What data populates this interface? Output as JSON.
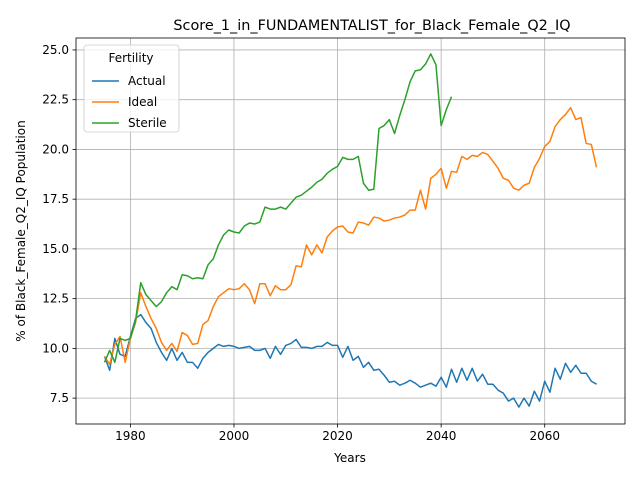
{
  "chart_data": {
    "type": "line",
    "title": "Score_1_in_FUNDAMENTALIST_for_Black_Female_Q2_IQ",
    "xlabel": "Years",
    "ylabel": "% of Black_Female_Q2_IQ Population",
    "xlim": [
      1969.5,
      2075.5
    ],
    "ylim": [
      6.2,
      25.6
    ],
    "xticks": [
      1980,
      2000,
      2020,
      2040,
      2060
    ],
    "yticks": [
      7.5,
      10.0,
      12.5,
      15.0,
      17.5,
      20.0,
      22.5,
      25.0
    ],
    "grid": true,
    "legend": {
      "title": "Fertility",
      "placement": "top-left"
    },
    "series": [
      {
        "name": "Actual",
        "color": "#1f77b4",
        "x": [
          1975,
          1976,
          1977,
          1978,
          1979,
          1980,
          1981,
          1982,
          1983,
          1984,
          1985,
          1986,
          1987,
          1988,
          1989,
          1990,
          1991,
          1992,
          1993,
          1994,
          1995,
          1996,
          1997,
          1998,
          1999,
          2000,
          2001,
          2002,
          2003,
          2004,
          2005,
          2006,
          2007,
          2008,
          2009,
          2010,
          2011,
          2012,
          2013,
          2014,
          2015,
          2016,
          2017,
          2018,
          2019,
          2020,
          2021,
          2022,
          2023,
          2024,
          2025,
          2026,
          2027,
          2028,
          2029,
          2030,
          2031,
          2032,
          2033,
          2034,
          2035,
          2036,
          2037,
          2038,
          2039,
          2040,
          2041,
          2042,
          2043,
          2044,
          2045,
          2046,
          2047,
          2048,
          2049,
          2050,
          2051,
          2052,
          2053,
          2054,
          2055,
          2056,
          2057,
          2058,
          2059,
          2060,
          2061,
          2062,
          2063,
          2064,
          2065,
          2066,
          2067,
          2068,
          2069,
          2070
        ],
        "y": [
          9.6,
          8.9,
          10.5,
          9.7,
          9.6,
          10.6,
          11.5,
          11.7,
          11.3,
          11.0,
          10.3,
          9.8,
          9.4,
          10.0,
          9.4,
          9.8,
          9.3,
          9.3,
          9.0,
          9.5,
          9.8,
          10.0,
          10.2,
          10.1,
          10.15,
          10.1,
          10.0,
          10.05,
          10.1,
          9.9,
          9.9,
          10.0,
          9.5,
          10.1,
          9.7,
          10.15,
          10.25,
          10.45,
          10.05,
          10.05,
          10.0,
          10.1,
          10.1,
          10.3,
          10.15,
          10.15,
          9.55,
          10.1,
          9.4,
          9.6,
          9.05,
          9.3,
          8.9,
          8.95,
          8.65,
          8.3,
          8.35,
          8.15,
          8.25,
          8.4,
          8.25,
          8.05,
          8.15,
          8.25,
          8.1,
          8.55,
          8.05,
          8.95,
          8.3,
          9.0,
          8.4,
          9.0,
          8.35,
          8.7,
          8.2,
          8.2,
          7.9,
          7.75,
          7.35,
          7.5,
          7.05,
          7.5,
          7.1,
          7.85,
          7.35,
          8.35,
          7.8,
          9.0,
          8.45,
          9.25,
          8.8,
          9.15,
          8.75,
          8.75,
          8.35,
          8.2
        ]
      },
      {
        "name": "Ideal",
        "color": "#ff7f0e",
        "x": [
          1975,
          1976,
          1977,
          1978,
          1979,
          1980,
          1981,
          1982,
          1983,
          1984,
          1985,
          1986,
          1987,
          1988,
          1989,
          1990,
          1991,
          1992,
          1993,
          1994,
          1995,
          1996,
          1997,
          1998,
          1999,
          2000,
          2001,
          2002,
          2003,
          2004,
          2005,
          2006,
          2007,
          2008,
          2009,
          2010,
          2011,
          2012,
          2013,
          2014,
          2015,
          2016,
          2017,
          2018,
          2019,
          2020,
          2021,
          2022,
          2023,
          2024,
          2025,
          2026,
          2027,
          2028,
          2029,
          2030,
          2031,
          2032,
          2033,
          2034,
          2035,
          2036,
          2037,
          2038,
          2039,
          2040,
          2041,
          2042,
          2043,
          2044,
          2045,
          2046,
          2047,
          2048,
          2049,
          2050,
          2051,
          2052,
          2053,
          2054,
          2055,
          2056,
          2057,
          2058,
          2059,
          2060,
          2061,
          2062,
          2063,
          2064,
          2065,
          2066,
          2067,
          2068,
          2069,
          2070
        ],
        "y": [
          9.6,
          9.2,
          10.2,
          10.6,
          9.3,
          10.5,
          11.3,
          12.8,
          12.1,
          11.5,
          11.0,
          10.3,
          9.9,
          10.25,
          9.85,
          10.8,
          10.65,
          10.2,
          10.25,
          11.2,
          11.4,
          12.1,
          12.6,
          12.8,
          13.0,
          12.95,
          13.0,
          13.25,
          12.95,
          12.25,
          13.25,
          13.25,
          12.65,
          13.15,
          12.95,
          12.95,
          13.2,
          14.15,
          14.1,
          15.2,
          14.7,
          15.2,
          14.8,
          15.6,
          15.9,
          16.1,
          16.15,
          15.85,
          15.8,
          16.35,
          16.3,
          16.2,
          16.6,
          16.55,
          16.4,
          16.45,
          16.55,
          16.6,
          16.7,
          16.95,
          16.95,
          17.95,
          17.0,
          18.55,
          18.75,
          19.05,
          18.05,
          18.9,
          18.85,
          19.65,
          19.5,
          19.7,
          19.65,
          19.85,
          19.75,
          19.4,
          19.05,
          18.55,
          18.45,
          18.05,
          17.95,
          18.2,
          18.3,
          19.1,
          19.55,
          20.15,
          20.4,
          21.15,
          21.5,
          21.75,
          22.1,
          21.5,
          21.6,
          20.3,
          20.25,
          19.1
        ]
      },
      {
        "name": "Sterile",
        "color": "#2ca02c",
        "x": [
          1975,
          1976,
          1977,
          1978,
          1979,
          1980,
          1981,
          1982,
          1983,
          1984,
          1985,
          1986,
          1987,
          1988,
          1989,
          1990,
          1991,
          1992,
          1993,
          1994,
          1995,
          1996,
          1997,
          1998,
          1999,
          2000,
          2001,
          2002,
          2003,
          2004,
          2005,
          2006,
          2007,
          2008,
          2009,
          2010,
          2011,
          2012,
          2013,
          2014,
          2015,
          2016,
          2017,
          2018,
          2019,
          2020,
          2021,
          2022,
          2023,
          2024,
          2025,
          2026,
          2027,
          2028,
          2029,
          2030,
          2031,
          2032,
          2033,
          2034,
          2035,
          2036,
          2037,
          2038,
          2039,
          2040,
          2041,
          2042
        ],
        "y": [
          9.3,
          9.9,
          9.3,
          10.5,
          10.4,
          10.5,
          11.4,
          13.3,
          12.7,
          12.4,
          12.1,
          12.35,
          12.8,
          13.1,
          12.95,
          13.7,
          13.65,
          13.5,
          13.55,
          13.5,
          14.2,
          14.5,
          15.2,
          15.7,
          15.95,
          15.85,
          15.8,
          16.15,
          16.3,
          16.25,
          16.35,
          17.1,
          17.0,
          17.0,
          17.1,
          17.0,
          17.3,
          17.6,
          17.7,
          17.9,
          18.1,
          18.35,
          18.5,
          18.8,
          19.0,
          19.15,
          19.6,
          19.5,
          19.5,
          19.65,
          18.3,
          17.95,
          18.0,
          21.05,
          21.2,
          21.5,
          20.8,
          21.7,
          22.5,
          23.4,
          23.95,
          24.0,
          24.3,
          24.8,
          24.25,
          21.2,
          22.0,
          22.65
        ]
      }
    ]
  }
}
